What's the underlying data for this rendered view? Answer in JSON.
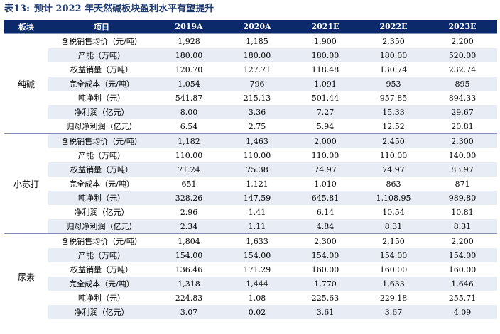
{
  "title": {
    "label": "表13:",
    "text": "预计 2022 年天然碱板块盈利水平有望提升"
  },
  "table": {
    "headers": [
      "板块",
      "项目",
      "2019A",
      "2020A",
      "2021E",
      "2022E",
      "2023E"
    ],
    "groups": [
      {
        "segment": "纯碱",
        "rows": [
          {
            "item": "含税销售均价（元/吨）",
            "values": [
              "1,928",
              "1,185",
              "1,900",
              "2,350",
              "2,200"
            ]
          },
          {
            "item": "产能（万吨）",
            "values": [
              "180.00",
              "180.00",
              "180.00",
              "180.00",
              "520.00"
            ]
          },
          {
            "item": "权益销量（万吨）",
            "values": [
              "120.70",
              "127.71",
              "118.48",
              "130.74",
              "232.74"
            ]
          },
          {
            "item": "完全成本（元/吨）",
            "values": [
              "1,054",
              "796",
              "1,091",
              "953",
              "895"
            ]
          },
          {
            "item": "吨净利（元）",
            "values": [
              "541.87",
              "215.13",
              "501.44",
              "957.85",
              "894.33"
            ]
          },
          {
            "item": "净利润（亿元）",
            "values": [
              "8.00",
              "3.36",
              "7.27",
              "15.33",
              "29.67"
            ]
          },
          {
            "item": "归母净利润（亿元）",
            "values": [
              "6.54",
              "2.75",
              "5.94",
              "12.52",
              "20.81"
            ]
          }
        ]
      },
      {
        "segment": "小苏打",
        "rows": [
          {
            "item": "含税销售均价（元/吨）",
            "values": [
              "1,182",
              "1,463",
              "2,000",
              "2,450",
              "2,300"
            ]
          },
          {
            "item": "产能（万吨）",
            "values": [
              "110.00",
              "110.00",
              "110.00",
              "110.00",
              "140.00"
            ]
          },
          {
            "item": "权益销量（万吨）",
            "values": [
              "71.24",
              "75.38",
              "74.97",
              "74.97",
              "83.97"
            ]
          },
          {
            "item": "完全成本（元/吨）",
            "values": [
              "651",
              "1,121",
              "1,010",
              "863",
              "871"
            ]
          },
          {
            "item": "吨净利（元）",
            "values": [
              "328.26",
              "147.59",
              "645.81",
              "1,108.95",
              "989.80"
            ]
          },
          {
            "item": "净利润（亿元）",
            "values": [
              "2.96",
              "1.41",
              "6.14",
              "10.54",
              "10.81"
            ]
          },
          {
            "item": "归母净利润（亿元）",
            "values": [
              "2.34",
              "1.11",
              "4.84",
              "8.31",
              "8.31"
            ]
          }
        ]
      },
      {
        "segment": "尿素",
        "rows": [
          {
            "item": "含税销售均价（元/吨）",
            "values": [
              "1,804",
              "1,633",
              "2,300",
              "2,150",
              "2,200"
            ]
          },
          {
            "item": "产能（万吨）",
            "values": [
              "154.00",
              "154.00",
              "154.00",
              "154.00",
              "154.00"
            ]
          },
          {
            "item": "权益销量（万吨）",
            "values": [
              "136.46",
              "171.29",
              "160.00",
              "160.00",
              "160.00"
            ]
          },
          {
            "item": "完全成本（元/吨）",
            "values": [
              "1,318",
              "1,444",
              "1,770",
              "1,633",
              "1,646"
            ]
          },
          {
            "item": "吨净利（元）",
            "values": [
              "224.83",
              "1.08",
              "225.63",
              "229.18",
              "255.71"
            ]
          },
          {
            "item": "净利润（亿元）",
            "values": [
              "3.07",
              "0.02",
              "3.61",
              "3.67",
              "4.09"
            ]
          }
        ]
      }
    ]
  }
}
